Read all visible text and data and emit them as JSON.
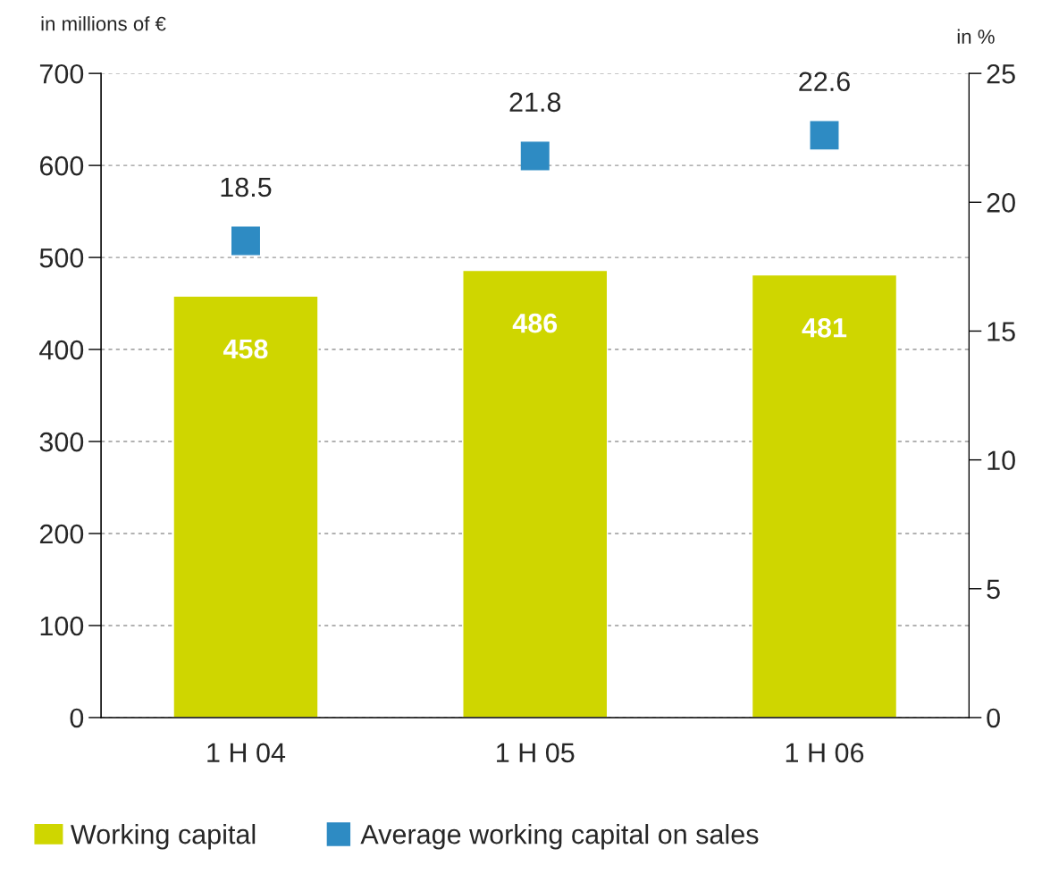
{
  "chart_data": {
    "type": "bar",
    "categories": [
      "1 H 04",
      "1 H 05",
      "1 H 06"
    ],
    "series": [
      {
        "name": "Working capital",
        "color": "#cfd600",
        "values": [
          458,
          486,
          481
        ]
      },
      {
        "name": "Average working capital on sales",
        "type": "scatter",
        "axis": "y2",
        "color": "#2e8bc3",
        "values": [
          18.5,
          21.8,
          22.6
        ]
      }
    ],
    "ylabel": "in millions of €",
    "y2label": "in %",
    "ylim": [
      0,
      700
    ],
    "yticks": [
      0,
      100,
      200,
      300,
      400,
      500,
      600,
      700
    ],
    "y2lim": [
      0,
      25
    ],
    "y2ticks": [
      0,
      5,
      10,
      15,
      20,
      25
    ],
    "data_labels": true,
    "grid": "y",
    "legend": "bottom",
    "marker": "square"
  }
}
